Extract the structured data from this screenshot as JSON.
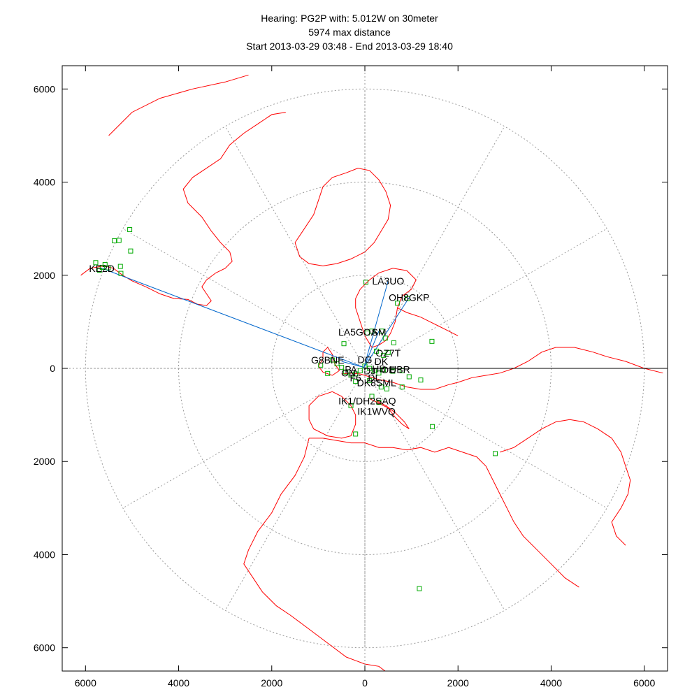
{
  "title": {
    "line1": "Hearing: PG2P with: 5.012W on 30meter",
    "line2": "5974 max distance",
    "line3": "Start 2013-03-29 03:48 - End 2013-03-29 18:40"
  },
  "chart_data": {
    "type": "scatter",
    "projection": "azimuthal-equidistant",
    "units": "km",
    "xlim": [
      -6500,
      6500
    ],
    "ylim": [
      -6500,
      6500
    ],
    "x_ticks": [
      "6000",
      "4000",
      "2000",
      "0",
      "2000",
      "4000",
      "6000"
    ],
    "x_tick_values": [
      -6000,
      -4000,
      -2000,
      0,
      2000,
      4000,
      6000
    ],
    "y_ticks": [
      "6000",
      "4000",
      "2000",
      "0",
      "2000",
      "4000",
      "6000"
    ],
    "y_tick_values": [
      6000,
      4000,
      2000,
      0,
      -2000,
      -4000,
      -6000
    ],
    "range_rings_km": [
      2000,
      4000,
      6000
    ],
    "radial_lines_deg": [
      0,
      30,
      60,
      90,
      120,
      150,
      180,
      210,
      240,
      270,
      300,
      330
    ],
    "grid": true,
    "colors": {
      "coastline": "#ff0000",
      "station_marker": "#00aa00",
      "path_line": "#0066cc",
      "grid": "#999999",
      "axis": "#000000"
    },
    "labels": [
      {
        "text": "KE2D",
        "x": -5650,
        "y": 2150
      },
      {
        "text": "LA3UO",
        "x": 500,
        "y": 1880
      },
      {
        "text": "OH8GKP",
        "x": 950,
        "y": 1520
      },
      {
        "text": "LA5GOA",
        "x": -150,
        "y": 780
      },
      {
        "text": "SM",
        "x": 300,
        "y": 780
      },
      {
        "text": "OZ7T",
        "x": 500,
        "y": 330
      },
      {
        "text": "G8BNE",
        "x": -800,
        "y": 180
      },
      {
        "text": "DG",
        "x": 0,
        "y": 190
      },
      {
        "text": "DK",
        "x": 350,
        "y": 150
      },
      {
        "text": "PA",
        "x": -300,
        "y": -20
      },
      {
        "text": "ON",
        "x": -350,
        "y": -100
      },
      {
        "text": "DJ",
        "x": 100,
        "y": -50
      },
      {
        "text": "HB",
        "x": 300,
        "y": -10
      },
      {
        "text": "OE",
        "x": 500,
        "y": -30
      },
      {
        "text": "UBR",
        "x": 750,
        "y": -20
      },
      {
        "text": "F6",
        "x": -200,
        "y": -200
      },
      {
        "text": "DL",
        "x": 200,
        "y": -200
      },
      {
        "text": "DK8SML",
        "x": 250,
        "y": -310
      },
      {
        "text": "IK1/DH2SAQ",
        "x": 50,
        "y": -700
      },
      {
        "text": "IK1WVQ",
        "x": 250,
        "y": -920
      }
    ],
    "stations": [
      {
        "x": -5780,
        "y": 2270
      },
      {
        "x": -5640,
        "y": 2170
      },
      {
        "x": -5580,
        "y": 2230
      },
      {
        "x": -5700,
        "y": 2110
      },
      {
        "x": -5510,
        "y": 2160
      },
      {
        "x": -5240,
        "y": 2040
      },
      {
        "x": -5250,
        "y": 2190
      },
      {
        "x": -5030,
        "y": 2520
      },
      {
        "x": -5050,
        "y": 2980
      },
      {
        "x": -5380,
        "y": 2740
      },
      {
        "x": -5280,
        "y": 2750
      },
      {
        "x": 20,
        "y": 1850
      },
      {
        "x": 920,
        "y": 1500
      },
      {
        "x": 700,
        "y": 1400
      },
      {
        "x": 440,
        "y": 650
      },
      {
        "x": 620,
        "y": 550
      },
      {
        "x": 1440,
        "y": 580
      },
      {
        "x": -450,
        "y": 530
      },
      {
        "x": 50,
        "y": 760
      },
      {
        "x": 150,
        "y": 800
      },
      {
        "x": 360,
        "y": 800
      },
      {
        "x": 500,
        "y": 340
      },
      {
        "x": 400,
        "y": 280
      },
      {
        "x": 250,
        "y": 370
      },
      {
        "x": -700,
        "y": 180
      },
      {
        "x": -600,
        "y": 100
      },
      {
        "x": -500,
        "y": 20
      },
      {
        "x": -410,
        "y": -80
      },
      {
        "x": -300,
        "y": -140
      },
      {
        "x": -200,
        "y": -120
      },
      {
        "x": -100,
        "y": -50
      },
      {
        "x": 0,
        "y": 50
      },
      {
        "x": 100,
        "y": 0
      },
      {
        "x": 200,
        "y": -50
      },
      {
        "x": 300,
        "y": -100
      },
      {
        "x": 400,
        "y": -30
      },
      {
        "x": 600,
        "y": -60
      },
      {
        "x": 800,
        "y": -50
      },
      {
        "x": -950,
        "y": 70
      },
      {
        "x": -800,
        "y": -110
      },
      {
        "x": -200,
        "y": -280
      },
      {
        "x": 100,
        "y": -260
      },
      {
        "x": 350,
        "y": -400
      },
      {
        "x": 470,
        "y": -440
      },
      {
        "x": 800,
        "y": -400
      },
      {
        "x": 1200,
        "y": -250
      },
      {
        "x": 950,
        "y": -180
      },
      {
        "x": 150,
        "y": -600
      },
      {
        "x": 300,
        "y": -730
      },
      {
        "x": -300,
        "y": -800
      },
      {
        "x": -200,
        "y": -1410
      },
      {
        "x": 1450,
        "y": -1250
      },
      {
        "x": 2800,
        "y": -1830
      },
      {
        "x": 1170,
        "y": -4730
      }
    ],
    "paths": [
      {
        "x1": -5650,
        "y1": 2150,
        "x2": -20,
        "y2": 20
      },
      {
        "x1": 500,
        "y1": 1880,
        "x2": -20,
        "y2": 20
      },
      {
        "x1": 950,
        "y1": 1520,
        "x2": -20,
        "y2": 20
      },
      {
        "x1": 300,
        "y1": 800,
        "x2": -20,
        "y2": 20
      },
      {
        "x1": -500,
        "y1": 150,
        "x2": -20,
        "y2": 20
      }
    ],
    "coastlines": [
      [
        [
          -6100,
          2000
        ],
        [
          -5900,
          2150
        ],
        [
          -5600,
          2200
        ],
        [
          -5400,
          2150
        ],
        [
          -5200,
          2000
        ],
        [
          -5000,
          1880
        ],
        [
          -4700,
          1750
        ],
        [
          -4400,
          1600
        ],
        [
          -4100,
          1500
        ],
        [
          -3800,
          1480
        ],
        [
          -3600,
          1380
        ],
        [
          -3400,
          1350
        ],
        [
          -3300,
          1450
        ],
        [
          -3400,
          1600
        ],
        [
          -3500,
          1750
        ],
        [
          -3400,
          1900
        ],
        [
          -3200,
          2050
        ],
        [
          -3000,
          2150
        ],
        [
          -2850,
          2300
        ],
        [
          -2900,
          2500
        ],
        [
          -3100,
          2700
        ],
        [
          -3300,
          2950
        ],
        [
          -3500,
          3250
        ],
        [
          -3800,
          3550
        ],
        [
          -3900,
          3850
        ],
        [
          -3700,
          4100
        ],
        [
          -3400,
          4300
        ],
        [
          -3100,
          4500
        ],
        [
          -2900,
          4800
        ],
        [
          -2600,
          5050
        ],
        [
          -2300,
          5250
        ],
        [
          -2000,
          5450
        ],
        [
          -1700,
          5500
        ]
      ],
      [
        [
          -1500,
          2700
        ],
        [
          -1300,
          3000
        ],
        [
          -1100,
          3300
        ],
        [
          -1000,
          3600
        ],
        [
          -900,
          3900
        ],
        [
          -700,
          4100
        ],
        [
          -400,
          4200
        ],
        [
          -150,
          4300
        ],
        [
          100,
          4250
        ],
        [
          300,
          4050
        ],
        [
          450,
          3800
        ],
        [
          550,
          3500
        ],
        [
          500,
          3200
        ],
        [
          350,
          2950
        ],
        [
          200,
          2700
        ],
        [
          0,
          2500
        ],
        [
          -300,
          2350
        ],
        [
          -600,
          2250
        ],
        [
          -900,
          2200
        ],
        [
          -1200,
          2250
        ],
        [
          -1400,
          2400
        ],
        [
          -1500,
          2700
        ]
      ],
      [
        [
          -5500,
          5000
        ],
        [
          -5000,
          5500
        ],
        [
          -4400,
          5800
        ],
        [
          -3700,
          6000
        ],
        [
          -3000,
          6150
        ],
        [
          -2500,
          6300
        ]
      ],
      [
        [
          -200,
          1500
        ],
        [
          -100,
          1700
        ],
        [
          100,
          1900
        ],
        [
          300,
          2050
        ],
        [
          600,
          2150
        ],
        [
          900,
          2100
        ],
        [
          1100,
          1900
        ],
        [
          1000,
          1700
        ],
        [
          800,
          1550
        ],
        [
          700,
          1300
        ],
        [
          650,
          1000
        ],
        [
          550,
          750
        ],
        [
          450,
          600
        ],
        [
          300,
          500
        ],
        [
          150,
          450
        ],
        [
          0,
          700
        ],
        [
          -100,
          1000
        ],
        [
          -200,
          1300
        ],
        [
          -200,
          1500
        ]
      ],
      [
        [
          700,
          1300
        ],
        [
          900,
          1200
        ],
        [
          1200,
          1100
        ],
        [
          1400,
          1000
        ],
        [
          1600,
          900
        ],
        [
          1800,
          800
        ],
        [
          2000,
          700
        ]
      ],
      [
        [
          -900,
          350
        ],
        [
          -800,
          450
        ],
        [
          -700,
          300
        ],
        [
          -650,
          100
        ],
        [
          -550,
          -50
        ],
        [
          -700,
          -150
        ],
        [
          -900,
          -80
        ],
        [
          -1000,
          50
        ],
        [
          -900,
          200
        ],
        [
          -900,
          350
        ]
      ],
      [
        [
          -500,
          -120
        ],
        [
          -300,
          -100
        ],
        [
          -100,
          -120
        ],
        [
          100,
          -180
        ],
        [
          300,
          -240
        ],
        [
          600,
          -300
        ],
        [
          900,
          -400
        ],
        [
          1200,
          -450
        ],
        [
          1500,
          -450
        ],
        [
          1800,
          -350
        ],
        [
          2000,
          -300
        ],
        [
          2300,
          -200
        ],
        [
          2600,
          -150
        ],
        [
          2900,
          -100
        ],
        [
          3200,
          0
        ],
        [
          3500,
          150
        ],
        [
          3800,
          350
        ],
        [
          4100,
          450
        ],
        [
          4500,
          450
        ],
        [
          4900,
          350
        ],
        [
          5200,
          250
        ],
        [
          5600,
          150
        ],
        [
          6000,
          0
        ],
        [
          6400,
          -100
        ]
      ],
      [
        [
          -700,
          -500
        ],
        [
          -1000,
          -600
        ],
        [
          -1200,
          -800
        ],
        [
          -1200,
          -1100
        ],
        [
          -1100,
          -1300
        ],
        [
          -800,
          -1450
        ],
        [
          -500,
          -1500
        ],
        [
          -300,
          -1450
        ],
        [
          -200,
          -1200
        ],
        [
          -200,
          -1000
        ],
        [
          -300,
          -800
        ],
        [
          -500,
          -600
        ],
        [
          -700,
          -500
        ]
      ],
      [
        [
          100,
          -650
        ],
        [
          300,
          -750
        ],
        [
          500,
          -850
        ],
        [
          650,
          -1050
        ],
        [
          800,
          -1200
        ],
        [
          950,
          -1300
        ],
        [
          850,
          -1150
        ],
        [
          650,
          -950
        ],
        [
          450,
          -800
        ],
        [
          250,
          -700
        ]
      ],
      [
        [
          -1200,
          -1500
        ],
        [
          -1300,
          -1900
        ],
        [
          -1500,
          -2300
        ],
        [
          -1800,
          -2700
        ],
        [
          -2000,
          -3100
        ],
        [
          -2300,
          -3500
        ],
        [
          -2500,
          -3900
        ],
        [
          -2600,
          -4200
        ],
        [
          -2400,
          -4500
        ],
        [
          -2200,
          -4800
        ],
        [
          -1900,
          -5100
        ],
        [
          -1600,
          -5300
        ],
        [
          -1200,
          -5600
        ],
        [
          -800,
          -5900
        ],
        [
          -400,
          -6200
        ],
        [
          0,
          -6350
        ],
        [
          300,
          -6400
        ],
        [
          500,
          -6550
        ]
      ],
      [
        [
          -1200,
          -1500
        ],
        [
          -900,
          -1500
        ],
        [
          -600,
          -1550
        ],
        [
          -300,
          -1600
        ],
        [
          0,
          -1600
        ],
        [
          300,
          -1700
        ],
        [
          600,
          -1700
        ],
        [
          900,
          -1750
        ],
        [
          1200,
          -1700
        ],
        [
          1500,
          -1800
        ],
        [
          1800,
          -1700
        ],
        [
          2100,
          -1800
        ],
        [
          2400,
          -1900
        ],
        [
          2600,
          -2100
        ],
        [
          2750,
          -2400
        ],
        [
          2900,
          -2700
        ],
        [
          3050,
          -3000
        ],
        [
          3200,
          -3300
        ],
        [
          3400,
          -3600
        ],
        [
          3700,
          -3900
        ],
        [
          4000,
          -4200
        ],
        [
          4300,
          -4500
        ],
        [
          4600,
          -4700
        ]
      ],
      [
        [
          2900,
          -1800
        ],
        [
          3200,
          -1700
        ],
        [
          3500,
          -1500
        ],
        [
          3800,
          -1300
        ],
        [
          4100,
          -1150
        ],
        [
          4400,
          -1100
        ],
        [
          4700,
          -1150
        ],
        [
          5000,
          -1300
        ],
        [
          5300,
          -1500
        ],
        [
          5500,
          -1800
        ],
        [
          5600,
          -2100
        ],
        [
          5700,
          -2400
        ],
        [
          5650,
          -2700
        ],
        [
          5500,
          -3000
        ],
        [
          5300,
          -3300
        ],
        [
          5400,
          -3600
        ],
        [
          5600,
          -3800
        ]
      ]
    ]
  }
}
